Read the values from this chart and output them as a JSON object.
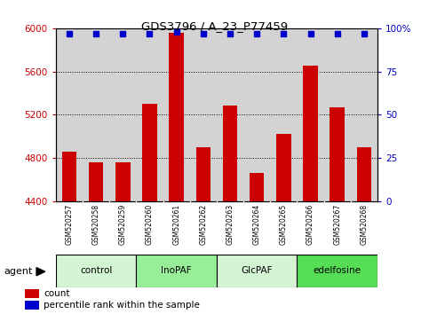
{
  "title": "GDS3796 / A_23_P77459",
  "samples": [
    "GSM520257",
    "GSM520258",
    "GSM520259",
    "GSM520260",
    "GSM520261",
    "GSM520262",
    "GSM520263",
    "GSM520264",
    "GSM520265",
    "GSM520266",
    "GSM520267",
    "GSM520268"
  ],
  "counts": [
    4860,
    4760,
    4760,
    5300,
    5960,
    4900,
    5280,
    4660,
    5020,
    5650,
    5270,
    4900
  ],
  "percentile_ranks": [
    97,
    97,
    97,
    97,
    98,
    97,
    97,
    97,
    97,
    97,
    97,
    97
  ],
  "agents": [
    {
      "label": "control",
      "start": 0,
      "end": 3,
      "color": "#d4f5d4"
    },
    {
      "label": "InoPAF",
      "start": 3,
      "end": 6,
      "color": "#99ee99"
    },
    {
      "label": "GlcPAF",
      "start": 6,
      "end": 9,
      "color": "#d4f5d4"
    },
    {
      "label": "edelfosine",
      "start": 9,
      "end": 12,
      "color": "#55dd55"
    }
  ],
  "bar_color": "#cc0000",
  "dot_color": "#0000cc",
  "ylim_left": [
    4400,
    6000
  ],
  "ylim_right": [
    0,
    100
  ],
  "yticks_left": [
    4400,
    4800,
    5200,
    5600,
    6000
  ],
  "yticks_right": [
    0,
    25,
    50,
    75,
    100
  ],
  "ytick_labels_right": [
    "0",
    "25",
    "50",
    "75",
    "100%"
  ],
  "grid_values": [
    4800,
    5200,
    5600
  ],
  "plot_bg_color": "#d3d3d3",
  "label_bg_color": "#c8c8c8",
  "legend_count_label": "count",
  "legend_pct_label": "percentile rank within the sample"
}
